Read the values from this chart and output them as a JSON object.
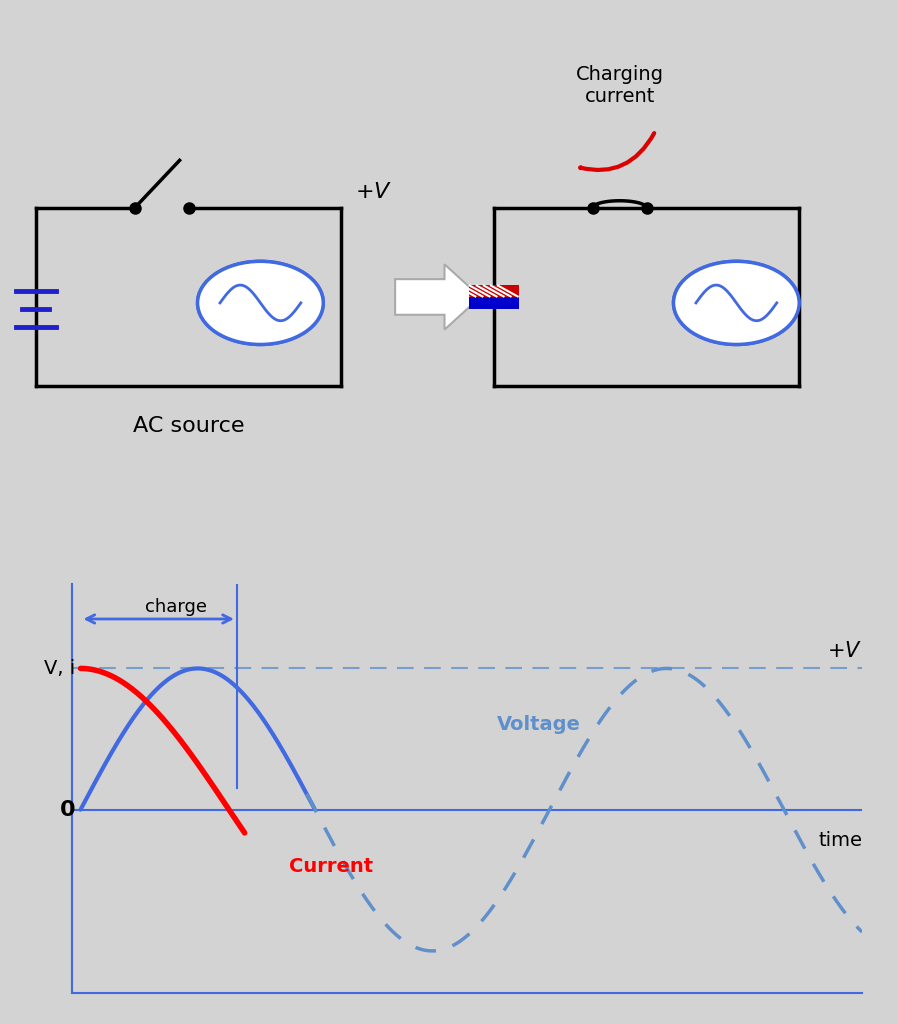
{
  "bg_color": "#d3d3d3",
  "circuit_title": "AC source",
  "charging_label": "Charging\ncurrent",
  "ylabel": "V, i",
  "xlabel": "time",
  "zero_label": "0",
  "pv_label": "+V",
  "charge_label": "charge",
  "voltage_label": "Voltage",
  "current_label": "Current",
  "line_color_blue": "#4169E1",
  "line_color_red": "#FF0000",
  "dashed_color": "#6090CC",
  "circuit_line_color": "#000000",
  "battery_color": "#2020CC",
  "capacitor_color_blue": "#0000CC",
  "capacitor_color_red": "#CC0000",
  "arrow_red": "#DD0000",
  "switch_dot_color": "#000000"
}
